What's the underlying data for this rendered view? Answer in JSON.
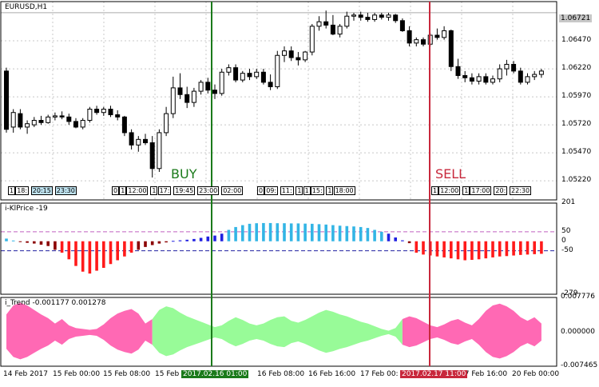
{
  "colors": {
    "background": "#ffffff",
    "grid": "#c8c8c8",
    "bull_body": "#ffffff",
    "bear_body": "#000000",
    "buy_line": "#1a7a1a",
    "sell_line": "#c8283c",
    "osc_pos": "#33b5e5",
    "osc_neg": "#ff1a1a",
    "osc_neutral": "#2020e0",
    "level_upper": "#c060c0",
    "level_lower": "#2020a0",
    "trend_pos": "#ff69b4",
    "trend_neg": "#98fb98",
    "price_label_bg": "#c8c8c8",
    "buy_tag_bg": "#1a7a1a",
    "sell_tag_bg": "#c8283c"
  },
  "main_chart": {
    "title": "EURUSD,H1",
    "current_price": "1.06721",
    "price_ticks": [
      "1.06470",
      "1.06220",
      "1.05970",
      "1.05720",
      "1.05470",
      "1.05220"
    ],
    "signal_buy": "BUY",
    "signal_sell": "SELL",
    "event_groups": [
      {
        "side": "left",
        "items": [
          "1",
          "18:",
          "20:15",
          "23:30"
        ]
      },
      {
        "side": "mid-left",
        "items": [
          "0",
          "1",
          "12:00",
          "1",
          "17:",
          "19:45",
          "23:00",
          "02:00"
        ]
      },
      {
        "side": "mid",
        "items": [
          "0",
          "09:",
          "11:",
          "1",
          "1",
          "15:",
          "1",
          "18:00"
        ]
      },
      {
        "side": "right",
        "items": [
          "1",
          "12:00",
          "1",
          "17:00",
          "20:",
          "22:30"
        ]
      }
    ]
  },
  "indicator1": {
    "title": "i-KlPrice -19",
    "ticks": [
      "201",
      "50",
      "0",
      "-50",
      "-279"
    ]
  },
  "indicator2": {
    "title": "i_Trend -0.001177 0.001278",
    "ticks": [
      "0.007776",
      "0.000000",
      "-0.007465"
    ]
  },
  "time_axis": {
    "labels": [
      "14 Feb 2017",
      "15 Feb 00:00",
      "15 Feb 08:00",
      "15 Feb",
      "16 Feb 08:00",
      "16 Feb 16:00",
      "17 Feb 00:",
      "17 Feb 16:00",
      "20 Feb 00:00"
    ],
    "buy_time": "2017.02.16 01:00",
    "sell_time": "2017.02.17 11:00"
  },
  "chart_data": {
    "type": "candlestick",
    "title": "EURUSD,H1",
    "ylim": [
      1.0505,
      1.0682
    ],
    "candles": [
      {
        "o": 1.062,
        "h": 1.0623,
        "l": 1.0565,
        "c": 1.0568
      },
      {
        "o": 1.057,
        "h": 1.0586,
        "l": 1.0565,
        "c": 1.0583
      },
      {
        "o": 1.0582,
        "h": 1.0586,
        "l": 1.0568,
        "c": 1.057
      },
      {
        "o": 1.057,
        "h": 1.0576,
        "l": 1.0564,
        "c": 1.0573
      },
      {
        "o": 1.0572,
        "h": 1.0579,
        "l": 1.057,
        "c": 1.0576
      },
      {
        "o": 1.0576,
        "h": 1.058,
        "l": 1.0572,
        "c": 1.0574
      },
      {
        "o": 1.0574,
        "h": 1.0581,
        "l": 1.0573,
        "c": 1.0579
      },
      {
        "o": 1.0579,
        "h": 1.0583,
        "l": 1.0576,
        "c": 1.058
      },
      {
        "o": 1.058,
        "h": 1.0584,
        "l": 1.0577,
        "c": 1.0579
      },
      {
        "o": 1.0579,
        "h": 1.0582,
        "l": 1.0572,
        "c": 1.0575
      },
      {
        "o": 1.0575,
        "h": 1.0578,
        "l": 1.0569,
        "c": 1.057
      },
      {
        "o": 1.057,
        "h": 1.0578,
        "l": 1.0568,
        "c": 1.0576
      },
      {
        "o": 1.0576,
        "h": 1.0588,
        "l": 1.0574,
        "c": 1.0586
      },
      {
        "o": 1.0586,
        "h": 1.0589,
        "l": 1.0581,
        "c": 1.0583
      },
      {
        "o": 1.0583,
        "h": 1.0588,
        "l": 1.058,
        "c": 1.0586
      },
      {
        "o": 1.0586,
        "h": 1.0589,
        "l": 1.0579,
        "c": 1.0581
      },
      {
        "o": 1.0581,
        "h": 1.0585,
        "l": 1.0576,
        "c": 1.0579
      },
      {
        "o": 1.0579,
        "h": 1.058,
        "l": 1.0562,
        "c": 1.0565
      },
      {
        "o": 1.0565,
        "h": 1.0568,
        "l": 1.055,
        "c": 1.0554
      },
      {
        "o": 1.0554,
        "h": 1.0562,
        "l": 1.0548,
        "c": 1.0559
      },
      {
        "o": 1.0559,
        "h": 1.0564,
        "l": 1.0554,
        "c": 1.0556
      },
      {
        "o": 1.0556,
        "h": 1.0562,
        "l": 1.0525,
        "c": 1.0533
      },
      {
        "o": 1.0533,
        "h": 1.0568,
        "l": 1.053,
        "c": 1.0565
      },
      {
        "o": 1.0565,
        "h": 1.0588,
        "l": 1.0562,
        "c": 1.0582
      },
      {
        "o": 1.0582,
        "h": 1.0615,
        "l": 1.0578,
        "c": 1.0605
      },
      {
        "o": 1.0605,
        "h": 1.0618,
        "l": 1.0595,
        "c": 1.0599
      },
      {
        "o": 1.0599,
        "h": 1.0606,
        "l": 1.0587,
        "c": 1.0592
      },
      {
        "o": 1.0592,
        "h": 1.0605,
        "l": 1.0588,
        "c": 1.0602
      },
      {
        "o": 1.0602,
        "h": 1.0612,
        "l": 1.0599,
        "c": 1.061
      },
      {
        "o": 1.061,
        "h": 1.0614,
        "l": 1.06,
        "c": 1.0603
      },
      {
        "o": 1.0603,
        "h": 1.0608,
        "l": 1.0595,
        "c": 1.06
      },
      {
        "o": 1.06,
        "h": 1.0622,
        "l": 1.0598,
        "c": 1.0619
      },
      {
        "o": 1.0619,
        "h": 1.0626,
        "l": 1.0616,
        "c": 1.0623
      },
      {
        "o": 1.0623,
        "h": 1.0626,
        "l": 1.061,
        "c": 1.0612
      },
      {
        "o": 1.0612,
        "h": 1.062,
        "l": 1.061,
        "c": 1.0618
      },
      {
        "o": 1.0618,
        "h": 1.0622,
        "l": 1.0612,
        "c": 1.0615
      },
      {
        "o": 1.0615,
        "h": 1.0622,
        "l": 1.0613,
        "c": 1.0619
      },
      {
        "o": 1.0619,
        "h": 1.0622,
        "l": 1.0608,
        "c": 1.061
      },
      {
        "o": 1.061,
        "h": 1.0617,
        "l": 1.0603,
        "c": 1.0606
      },
      {
        "o": 1.0606,
        "h": 1.0638,
        "l": 1.0604,
        "c": 1.0634
      },
      {
        "o": 1.0634,
        "h": 1.0642,
        "l": 1.0628,
        "c": 1.0638
      },
      {
        "o": 1.0638,
        "h": 1.0642,
        "l": 1.0629,
        "c": 1.0632
      },
      {
        "o": 1.0632,
        "h": 1.0637,
        "l": 1.0625,
        "c": 1.063
      },
      {
        "o": 1.063,
        "h": 1.0638,
        "l": 1.0628,
        "c": 1.0637
      },
      {
        "o": 1.0637,
        "h": 1.0662,
        "l": 1.0634,
        "c": 1.066
      },
      {
        "o": 1.066,
        "h": 1.0669,
        "l": 1.0656,
        "c": 1.0664
      },
      {
        "o": 1.0664,
        "h": 1.0674,
        "l": 1.0658,
        "c": 1.0661
      },
      {
        "o": 1.0661,
        "h": 1.067,
        "l": 1.0652,
        "c": 1.0653
      },
      {
        "o": 1.0653,
        "h": 1.0662,
        "l": 1.065,
        "c": 1.066
      },
      {
        "o": 1.066,
        "h": 1.0673,
        "l": 1.0658,
        "c": 1.0669
      },
      {
        "o": 1.0669,
        "h": 1.0672,
        "l": 1.0665,
        "c": 1.067
      },
      {
        "o": 1.067,
        "h": 1.0673,
        "l": 1.0665,
        "c": 1.0668
      },
      {
        "o": 1.0668,
        "h": 1.0672,
        "l": 1.0664,
        "c": 1.0666
      },
      {
        "o": 1.0666,
        "h": 1.0672,
        "l": 1.0664,
        "c": 1.067
      },
      {
        "o": 1.067,
        "h": 1.0672,
        "l": 1.0666,
        "c": 1.0668
      },
      {
        "o": 1.0668,
        "h": 1.0672,
        "l": 1.0665,
        "c": 1.067
      },
      {
        "o": 1.067,
        "h": 1.0671,
        "l": 1.0663,
        "c": 1.0665
      },
      {
        "o": 1.0665,
        "h": 1.0667,
        "l": 1.0655,
        "c": 1.0656
      },
      {
        "o": 1.0656,
        "h": 1.066,
        "l": 1.0642,
        "c": 1.0645
      },
      {
        "o": 1.0645,
        "h": 1.065,
        "l": 1.0642,
        "c": 1.0648
      },
      {
        "o": 1.0648,
        "h": 1.065,
        "l": 1.0642,
        "c": 1.0644
      },
      {
        "o": 1.0644,
        "h": 1.0654,
        "l": 1.0642,
        "c": 1.0652
      },
      {
        "o": 1.0652,
        "h": 1.0658,
        "l": 1.0648,
        "c": 1.065
      },
      {
        "o": 1.065,
        "h": 1.066,
        "l": 1.0648,
        "c": 1.0656
      },
      {
        "o": 1.0656,
        "h": 1.0657,
        "l": 1.062,
        "c": 1.0624
      },
      {
        "o": 1.0624,
        "h": 1.0631,
        "l": 1.0613,
        "c": 1.0616
      },
      {
        "o": 1.0616,
        "h": 1.062,
        "l": 1.061,
        "c": 1.0614
      },
      {
        "o": 1.0614,
        "h": 1.0618,
        "l": 1.0608,
        "c": 1.0611
      },
      {
        "o": 1.0611,
        "h": 1.0618,
        "l": 1.0608,
        "c": 1.0615
      },
      {
        "o": 1.0615,
        "h": 1.0618,
        "l": 1.0608,
        "c": 1.061
      },
      {
        "o": 1.061,
        "h": 1.0616,
        "l": 1.0608,
        "c": 1.0613
      },
      {
        "o": 1.0613,
        "h": 1.0626,
        "l": 1.061,
        "c": 1.0622
      },
      {
        "o": 1.0622,
        "h": 1.063,
        "l": 1.0616,
        "c": 1.0626
      },
      {
        "o": 1.0626,
        "h": 1.0629,
        "l": 1.0618,
        "c": 1.062
      },
      {
        "o": 1.062,
        "h": 1.0623,
        "l": 1.0608,
        "c": 1.061
      },
      {
        "o": 1.061,
        "h": 1.0618,
        "l": 1.0608,
        "c": 1.0615
      },
      {
        "o": 1.0615,
        "h": 1.062,
        "l": 1.0612,
        "c": 1.0617
      },
      {
        "o": 1.0617,
        "h": 1.0622,
        "l": 1.0614,
        "c": 1.062
      }
    ],
    "osc_values": [
      14,
      4,
      -3,
      -8,
      -12,
      -18,
      -25,
      -45,
      -60,
      -95,
      -130,
      -160,
      -170,
      -155,
      -140,
      -120,
      -100,
      -80,
      -60,
      -45,
      -30,
      -20,
      -12,
      -6,
      2,
      5,
      8,
      12,
      18,
      25,
      30,
      40,
      60,
      75,
      85,
      92,
      95,
      96,
      96,
      95,
      95,
      94,
      94,
      93,
      92,
      90,
      88,
      85,
      82,
      80,
      78,
      75,
      70,
      60,
      50,
      40,
      20,
      5,
      -10,
      -60,
      -70,
      -75,
      -80,
      -85,
      -90,
      -95,
      -100,
      -98,
      -95,
      -90,
      -85,
      -80,
      -78,
      -75,
      -72,
      -70,
      -68,
      -66
    ],
    "trend_series": [
      {
        "name": "positive",
        "values": [
          0.004,
          0.006,
          0.0065,
          0.006,
          0.005,
          0.004,
          0.0035,
          0.002,
          0.003,
          0.0015,
          0.001,
          0,
          0,
          0,
          0.001,
          0.003,
          0.0042,
          0.0048,
          0.005,
          0.004,
          0.002,
          0,
          0,
          0,
          0,
          0,
          0,
          0,
          0,
          0,
          0,
          0,
          0,
          0,
          0,
          0,
          0,
          0,
          0,
          0,
          0,
          0,
          0,
          0,
          0,
          0,
          0,
          0,
          0,
          0,
          0,
          0,
          0,
          0,
          0,
          0,
          0,
          0,
          0,
          0,
          0,
          0,
          0,
          0,
          0,
          0,
          0,
          0,
          0,
          0,
          0,
          0,
          0,
          0,
          0,
          0,
          0,
          0
        ]
      },
      {
        "name": "negative",
        "values": [
          0,
          0,
          0,
          0,
          0,
          0,
          0,
          0,
          0,
          0,
          0,
          0,
          0,
          0,
          0,
          0,
          0,
          0,
          0,
          0,
          0,
          -0.003,
          -0.005,
          -0.0055,
          -0.005,
          -0.004,
          -0.0035,
          -0.003,
          -0.0025,
          -0.002,
          -0.001,
          0,
          0,
          0,
          0,
          0,
          0,
          0,
          0,
          0,
          0,
          0,
          0,
          0,
          0,
          0,
          0,
          0,
          0,
          0,
          0,
          0,
          0,
          0,
          0,
          0,
          0,
          0,
          0,
          0,
          0,
          0,
          0,
          0,
          0,
          0,
          0,
          0,
          0,
          0,
          0,
          0,
          0,
          0,
          0,
          0,
          0,
          0
        ]
      }
    ]
  }
}
